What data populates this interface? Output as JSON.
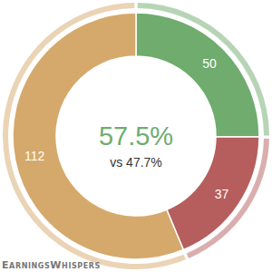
{
  "chart_data": {
    "type": "pie",
    "categories": [
      null,
      null,
      null
    ],
    "values": [
      50,
      37,
      112
    ],
    "colors": [
      "#6fac6e",
      "#b65e5e",
      "#d5a96b"
    ],
    "data_labels": true,
    "center_label": "57.5%",
    "center_sublabel": "vs 47.7%",
    "source": "EarningsWhispers"
  }
}
